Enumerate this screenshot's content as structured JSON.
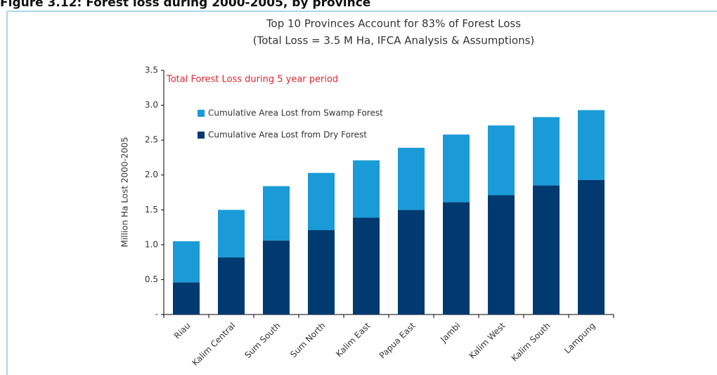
{
  "header": "Figure 3.12: Forest loss during 2000-2005, by province",
  "chart_data": {
    "type": "stacked_bar",
    "title": "Top 10 Provinces Account for 83% of Forest Loss",
    "subtitle": "(Total Loss = 3.5 M Ha, IFCA Analysis & Assumptions)",
    "annotation": "Total Forest Loss during 5 year period",
    "y_label": "Million Ha Lost 2000-2005",
    "categories": [
      "Riau",
      "Kalim Central",
      "Sum South",
      "Sum North",
      "Kalim East",
      "Papua East",
      "Jambi",
      "Kalim West",
      "Kalim South",
      "Lampung"
    ],
    "series": [
      {
        "name": "Cumulative Area Lost from Dry Forest",
        "color": "#003a70",
        "values": [
          0.46,
          0.82,
          1.06,
          1.21,
          1.39,
          1.5,
          1.61,
          1.71,
          1.85,
          1.93
        ]
      },
      {
        "name": "Cumulative Area Lost from Swamp Forest",
        "color": "#1a9bd7",
        "values": [
          0.59,
          0.68,
          0.78,
          0.82,
          0.82,
          0.89,
          0.97,
          1.0,
          0.98,
          1.0
        ]
      }
    ],
    "ylim": [
      0,
      3.5
    ],
    "yticks": [
      {
        "value": 0,
        "label": "-"
      },
      0.5,
      {
        "value": 1,
        "label": "1.0"
      },
      1.5,
      {
        "value": 2,
        "label": "2.0"
      },
      2.5,
      {
        "value": 3,
        "label": "3.0"
      },
      3.5
    ],
    "grid": false
  }
}
